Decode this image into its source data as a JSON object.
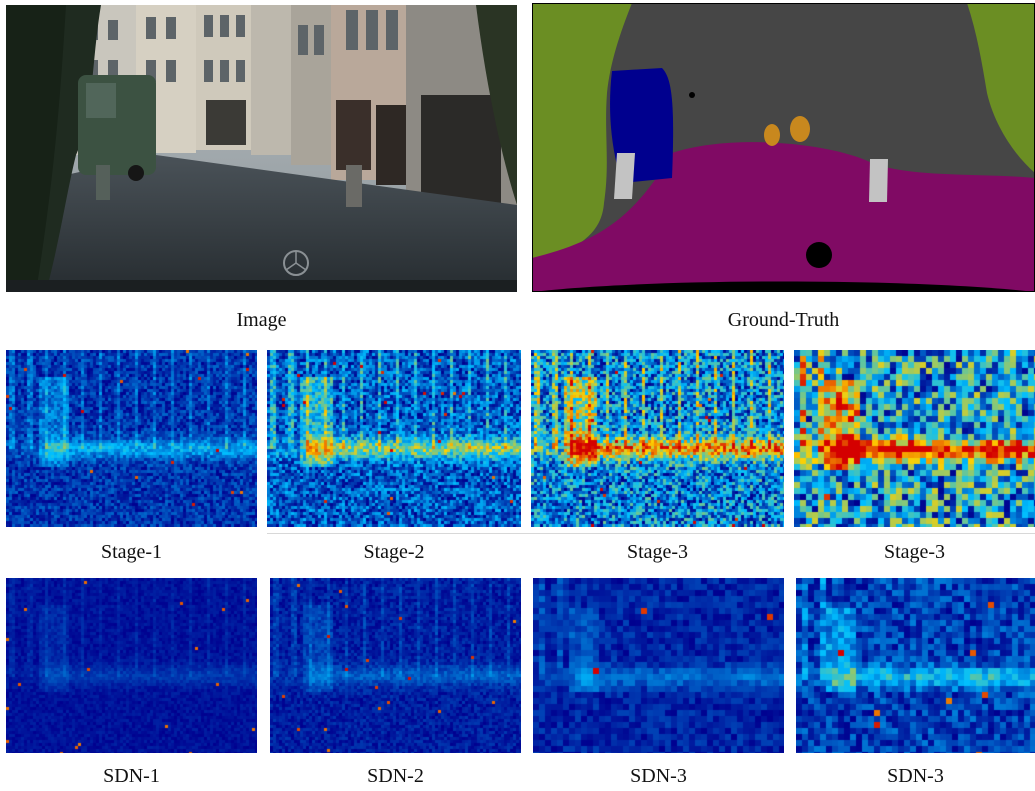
{
  "figure": {
    "top_row": {
      "image_caption": "Image",
      "ground_truth_caption": "Ground-Truth"
    },
    "stage_row": {
      "captions": [
        "Stage-1",
        "Stage-2",
        "Stage-3",
        "Stage-3"
      ]
    },
    "sdn_row": {
      "captions": [
        "SDN-1",
        "SDN-2",
        "SDN-3",
        "SDN-3"
      ]
    }
  },
  "colors": {
    "heat_low": "#00008f",
    "heat_mid": "#00bfff",
    "heat_high": "#ffd000",
    "heat_peak": "#d40000",
    "seg_vegetation": "#6b8e23",
    "seg_building": "#464646",
    "seg_road": "#800a64",
    "seg_car": "#00008e",
    "seg_pole": "#c3c3c3",
    "seg_sign": "#c8881e",
    "seg_ego": "#000000"
  }
}
